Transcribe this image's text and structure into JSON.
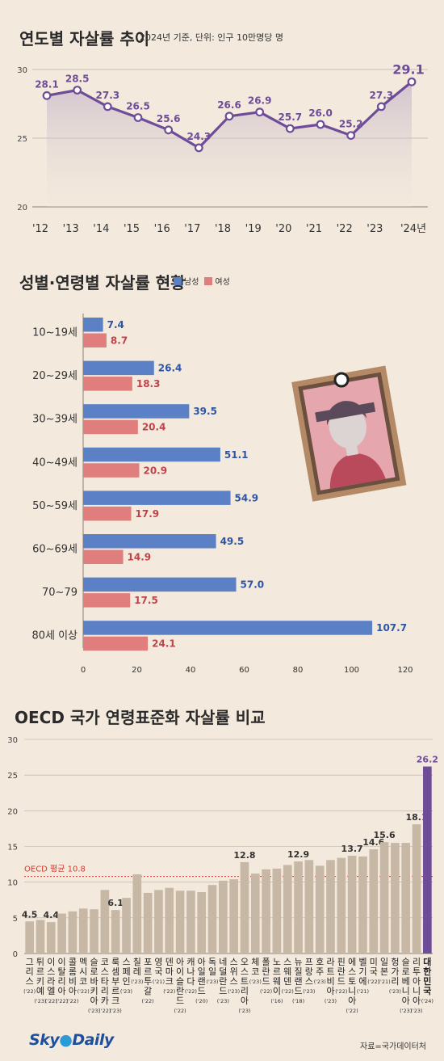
{
  "chart_data": [
    {
      "type": "line",
      "title": "연도별 자살률 추이",
      "subtitle": "2024년 기준, 단위: 인구 10만명당 명",
      "x": [
        "'12",
        "'13",
        "'14",
        "'15",
        "'16",
        "'17",
        "'18",
        "'19",
        "'20",
        "'21",
        "'22",
        "'23",
        "'24년"
      ],
      "values": [
        28.1,
        28.5,
        27.3,
        26.5,
        25.6,
        24.3,
        26.6,
        26.9,
        25.7,
        26.0,
        25.2,
        27.3,
        29.1
      ],
      "value_labels": [
        "28.1",
        "28.5",
        "27.3",
        "26.5",
        "25.6",
        "24.3",
        "26.6",
        "26.9",
        "25.7",
        "26.0",
        "25.2",
        "27.3",
        "29.1"
      ],
      "y_ticks": [
        "30",
        "25",
        "20"
      ],
      "ylim": [
        20,
        30
      ],
      "color": "#6e4c98"
    },
    {
      "type": "bar",
      "orientation": "horizontal",
      "title": "성별·연령별 자살률 현황",
      "categories": [
        "10~19세",
        "20~29세",
        "30~39세",
        "40~49세",
        "50~59세",
        "60~69세",
        "70~79",
        "80세 이상"
      ],
      "series": [
        {
          "name": "남성",
          "color": "#5b80c6",
          "values": [
            7.4,
            26.4,
            39.5,
            51.1,
            54.9,
            49.5,
            57.0,
            107.7
          ],
          "labels": [
            "7.4",
            "26.4",
            "39.5",
            "51.1",
            "54.9",
            "49.5",
            "57.0",
            "107.7"
          ]
        },
        {
          "name": "여성",
          "color": "#e07d7d",
          "values": [
            8.7,
            18.3,
            20.4,
            20.9,
            17.9,
            14.9,
            17.5,
            24.1
          ],
          "labels": [
            "8.7",
            "18.3",
            "20.4",
            "20.9",
            "17.9",
            "14.9",
            "17.5",
            "24.1"
          ]
        }
      ],
      "x_ticks": [
        "0",
        "20",
        "40",
        "60",
        "80",
        "100",
        "120"
      ],
      "xlim": [
        0,
        120
      ]
    },
    {
      "type": "bar",
      "title": "OECD 국가 연령표준화 자살률 비교",
      "y_ticks": [
        "30",
        "25",
        "20",
        "15",
        "10",
        "5",
        "0"
      ],
      "ylim": [
        0,
        30
      ],
      "average_line": {
        "label": "OECD 평균 10.8",
        "value": 10.8,
        "color": "#d33a2c"
      },
      "colors": {
        "bar": "#c7b8a6",
        "highlight": "#6e4c98"
      },
      "countries": [
        {
          "name": "그리스",
          "year": "('22)",
          "value": 4.5,
          "label": "4.5"
        },
        {
          "name": "튀르키예",
          "year": "('23)",
          "value": 4.7,
          "label": ""
        },
        {
          "name": "이스라엘",
          "year": "('22)",
          "value": 4.4,
          "label": "4.4"
        },
        {
          "name": "이탈리아",
          "year": "('22)",
          "value": 5.6,
          "label": ""
        },
        {
          "name": "콜롬비아",
          "year": "('22)",
          "value": 5.9,
          "label": ""
        },
        {
          "name": "멕시코",
          "year": "('22)",
          "value": 6.3,
          "label": ""
        },
        {
          "name": "슬로바키아",
          "year": "('23)",
          "value": 6.2,
          "label": ""
        },
        {
          "name": "코스타리카",
          "year": "('22)",
          "value": 8.9,
          "label": ""
        },
        {
          "name": "룩셈부르크",
          "year": "('23)",
          "value": 6.1,
          "label": "6.1"
        },
        {
          "name": "스페인",
          "year": "('23)",
          "value": 7.8,
          "label": ""
        },
        {
          "name": "칠레",
          "year": "('23)",
          "value": 11.1,
          "label": ""
        },
        {
          "name": "포르투갈",
          "year": "('22)",
          "value": 8.5,
          "label": ""
        },
        {
          "name": "영국",
          "year": "('21)",
          "value": 8.9,
          "label": ""
        },
        {
          "name": "덴마크",
          "year": "('22)",
          "value": 9.2,
          "label": ""
        },
        {
          "name": "아이슬란드",
          "year": "('22)",
          "value": 8.8,
          "label": ""
        },
        {
          "name": "캐나다",
          "year": "('22)",
          "value": 8.8,
          "label": ""
        },
        {
          "name": "아일랜드",
          "year": "('20)",
          "value": 8.6,
          "label": ""
        },
        {
          "name": "독일",
          "year": "('23)",
          "value": 9.6,
          "label": ""
        },
        {
          "name": "네덜란드",
          "year": "('23)",
          "value": 10.2,
          "label": ""
        },
        {
          "name": "스위스",
          "year": "('23)",
          "value": 10.4,
          "label": ""
        },
        {
          "name": "오스트리아",
          "year": "('23)",
          "value": 12.8,
          "label": "12.8"
        },
        {
          "name": "체코",
          "year": "('23)",
          "value": 11.2,
          "label": ""
        },
        {
          "name": "폴란드",
          "year": "('22)",
          "value": 11.8,
          "label": ""
        },
        {
          "name": "노르웨이",
          "year": "('16)",
          "value": 11.9,
          "label": ""
        },
        {
          "name": "스웨덴",
          "year": "('22)",
          "value": 12.4,
          "label": ""
        },
        {
          "name": "뉴질랜드",
          "year": "('18)",
          "value": 12.9,
          "label": "12.9"
        },
        {
          "name": "프랑스",
          "year": "('23)",
          "value": 13.1,
          "label": ""
        },
        {
          "name": "호주",
          "year": "('23)",
          "value": 12.3,
          "label": ""
        },
        {
          "name": "라트비아",
          "year": "('23)",
          "value": 13.1,
          "label": ""
        },
        {
          "name": "핀란드",
          "year": "('22)",
          "value": 13.4,
          "label": ""
        },
        {
          "name": "에스토니아",
          "year": "('22)",
          "value": 13.7,
          "label": "13.7"
        },
        {
          "name": "벨기에",
          "year": "('21)",
          "value": 13.6,
          "label": ""
        },
        {
          "name": "미국",
          "year": "('22)",
          "value": 14.6,
          "label": "14.6"
        },
        {
          "name": "일본",
          "year": "('21)",
          "value": 15.6,
          "label": "15.6"
        },
        {
          "name": "헝가리",
          "year": "('23)",
          "value": 15.5,
          "label": ""
        },
        {
          "name": "슬로베니아",
          "year": "('23)",
          "value": 15.5,
          "label": ""
        },
        {
          "name": "리투아니아",
          "year": "('23)",
          "value": 18.1,
          "label": "18.1"
        },
        {
          "name": "대한민국",
          "year": "('24)",
          "value": 26.2,
          "label": "26.2",
          "highlight": true
        }
      ]
    }
  ],
  "legend": {
    "male": "남성",
    "female": "여성"
  },
  "footer": {
    "brand_sky": "Sky",
    "brand_daily": "Daily",
    "source": "자료=국가데이터처"
  }
}
